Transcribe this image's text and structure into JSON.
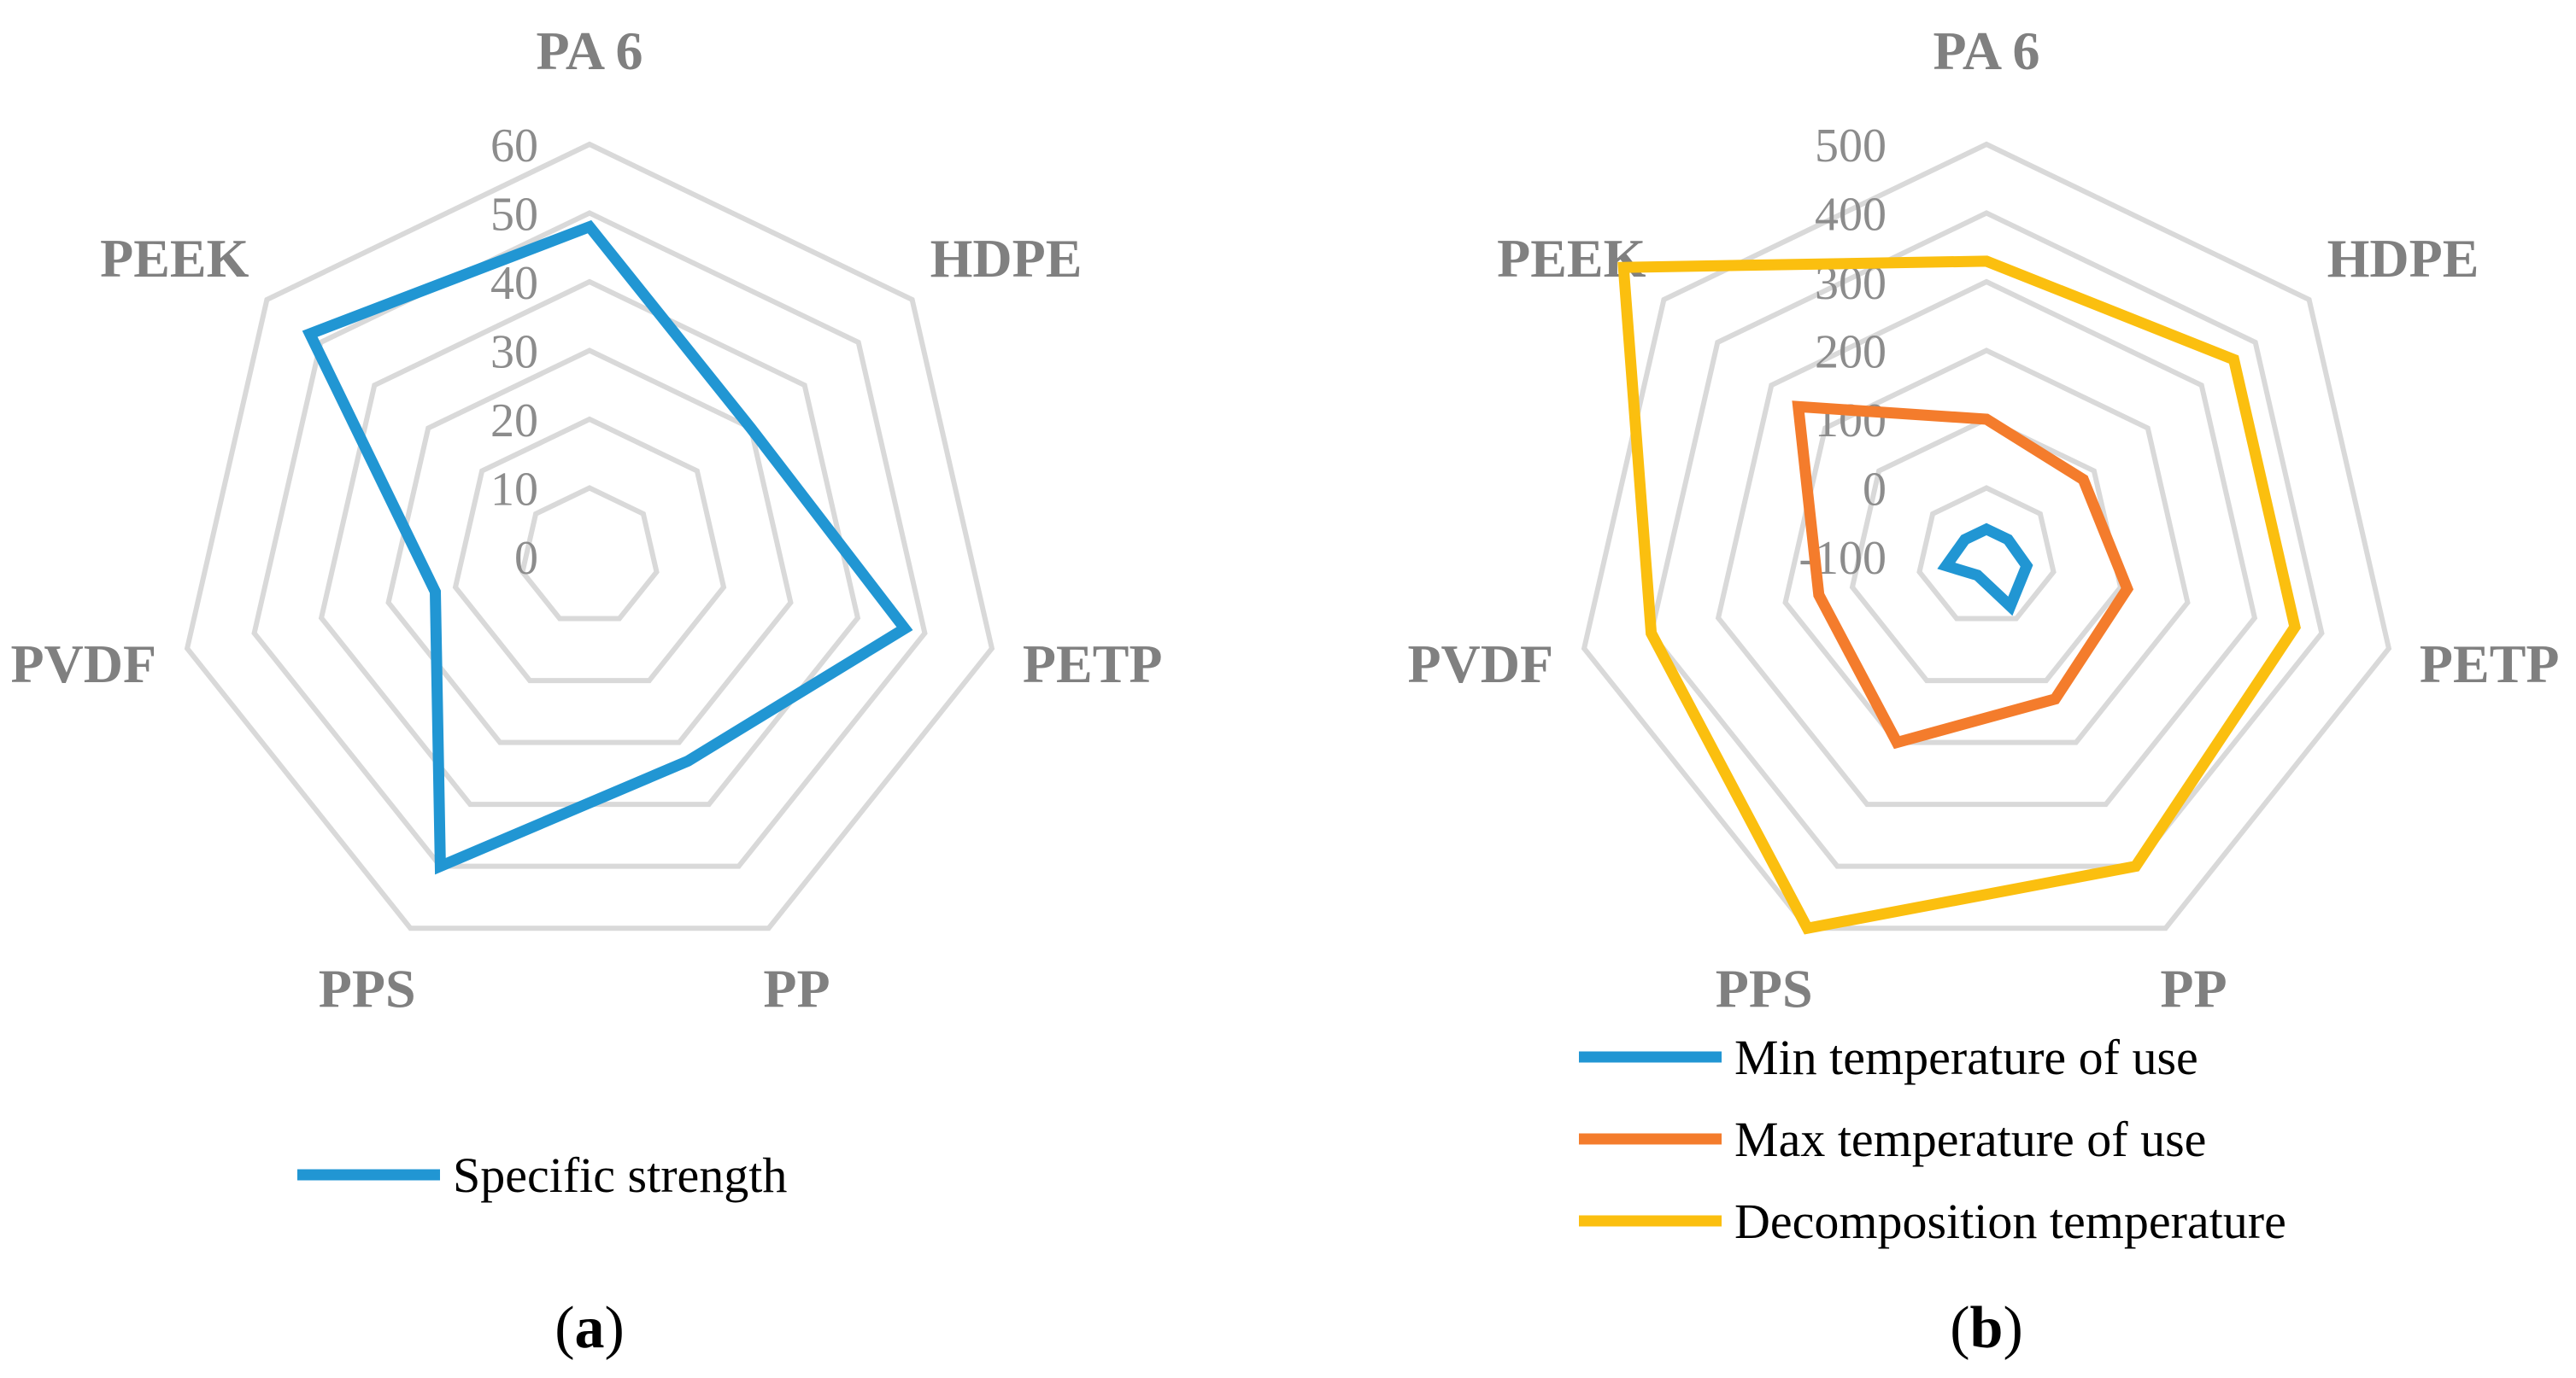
{
  "chart_data": [
    {
      "type": "radar",
      "panel_label": "a",
      "categories": [
        "PA 6",
        "HDPE",
        "PETP",
        "PP",
        "PPS",
        "PVDF",
        "PEEK"
      ],
      "r_ticks": [
        "0",
        "10",
        "20",
        "30",
        "40",
        "50",
        "60"
      ],
      "rlim": [
        0,
        60
      ],
      "grid": true,
      "legend_position": "bottom",
      "series": [
        {
          "name": "Specific strength",
          "color": "#2196d3",
          "values": [
            48,
            30,
            47,
            33,
            50,
            23,
            52
          ]
        }
      ]
    },
    {
      "type": "radar",
      "panel_label": "b",
      "categories": [
        "PA 6",
        "HDPE",
        "PETP",
        "PP",
        "PPS",
        "PVDF",
        "PEEK"
      ],
      "r_ticks": [
        "-100",
        "0",
        "100",
        "200",
        "300",
        "400",
        "500"
      ],
      "rlim": [
        -100,
        500
      ],
      "grid": true,
      "legend_position": "bottom",
      "series": [
        {
          "name": "Min temperature of use",
          "color": "#2196d3",
          "values": [
            -60,
            -60,
            -40,
            -20,
            -70,
            -40,
            -60
          ]
        },
        {
          "name": "Max temperature of use",
          "color": "#f47c2c",
          "values": [
            100,
            80,
            110,
            130,
            200,
            150,
            250
          ]
        },
        {
          "name": "Decomposition temperature",
          "color": "#fbbf0f",
          "values": [
            330,
            360,
            360,
            400,
            500,
            400,
            575
          ]
        }
      ]
    }
  ]
}
